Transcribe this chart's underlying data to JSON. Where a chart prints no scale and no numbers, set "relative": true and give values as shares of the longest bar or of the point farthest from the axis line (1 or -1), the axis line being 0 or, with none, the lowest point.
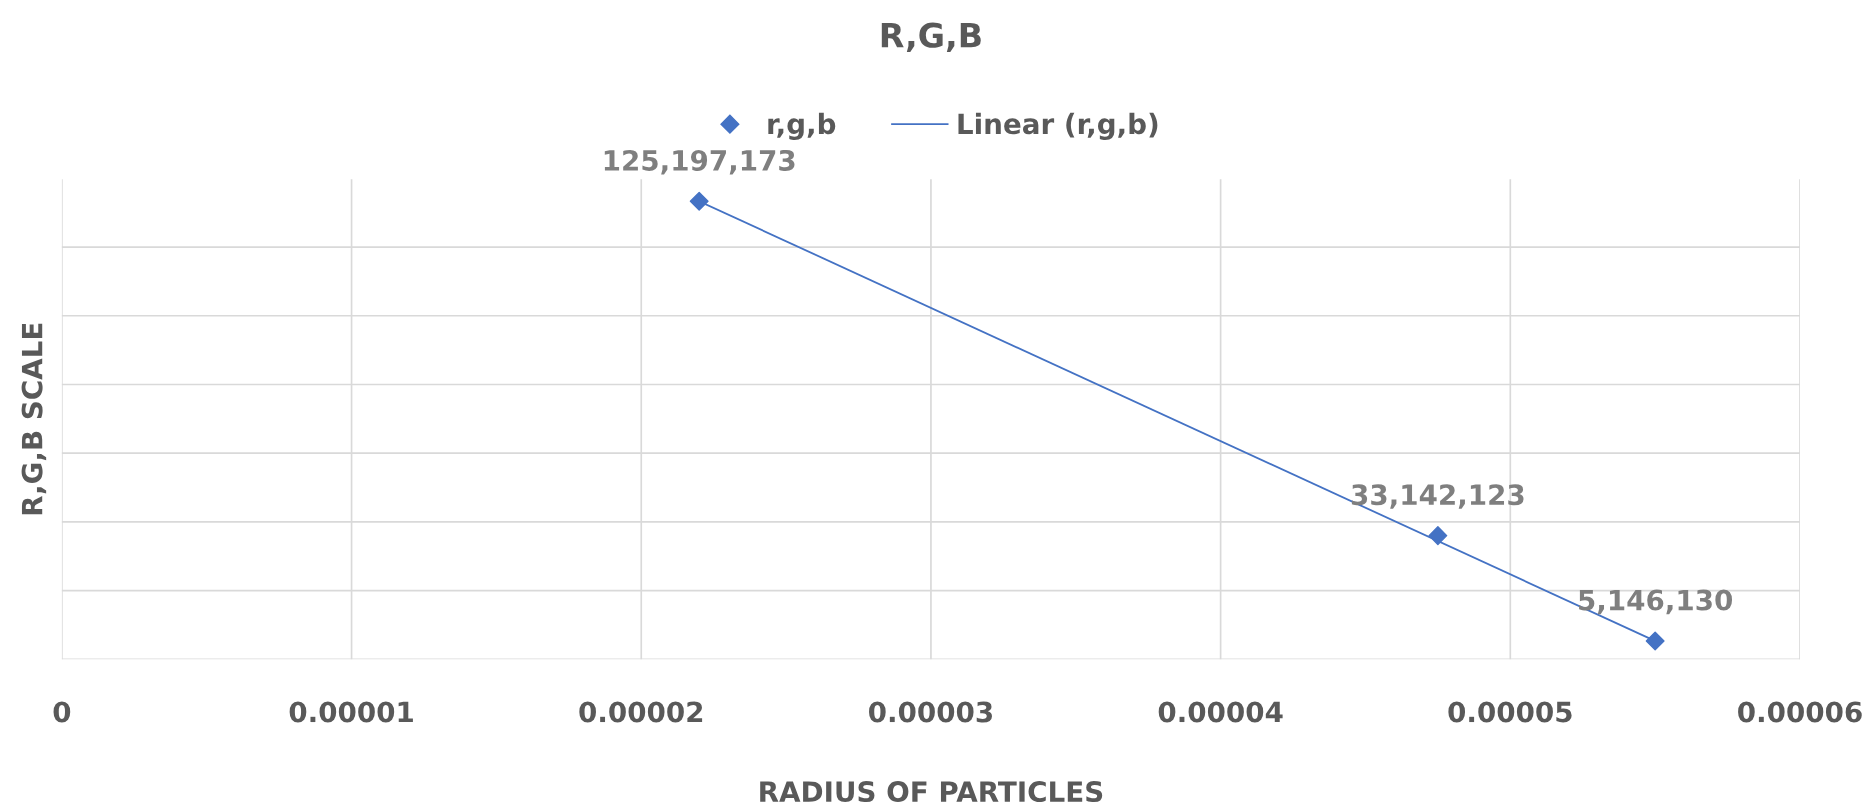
{
  "chart_data": {
    "type": "scatter",
    "title": "R,G,B",
    "xlabel": "RADIUS OF PARTICLES",
    "ylabel": "R,G,B SCALE",
    "relative": true,
    "xlim": [
      0,
      6e-05
    ],
    "xticks": [
      0,
      {
        "value": 1e-05,
        "label": "0.00001"
      },
      {
        "value": 2e-05,
        "label": "0.00002"
      },
      {
        "value": 3e-05,
        "label": "0.00003"
      },
      {
        "value": 4e-05,
        "label": "0.00004"
      },
      {
        "value": 5e-05,
        "label": "0.00005"
      },
      {
        "value": 6e-05,
        "label": "0.00006"
      }
    ],
    "tick_labels": "x",
    "grid": true,
    "legend": "top",
    "annotations": [
      {
        "text": "125,197,173",
        "x": 2.2e-05,
        "y": 1.0
      },
      {
        "text": "33,142,123",
        "x": 4.75e-05,
        "y": 0.27
      },
      {
        "text": "5,146,130",
        "x": 5.5e-05,
        "y": 0.04
      }
    ],
    "series": [
      {
        "name": "r,g,b",
        "marker": "diamond",
        "color": "#4472c4",
        "x": [
          2.2e-05,
          4.75e-05,
          5.5e-05
        ],
        "values": [
          1.0,
          0.27,
          0.04
        ]
      },
      {
        "name": "Linear (r,g,b)",
        "type": "line",
        "marker": "none",
        "line_style": "solid",
        "color": "#4472c4",
        "x": [
          2.2e-05,
          5.5e-05
        ],
        "values": [
          1.0,
          0.04
        ]
      }
    ]
  }
}
